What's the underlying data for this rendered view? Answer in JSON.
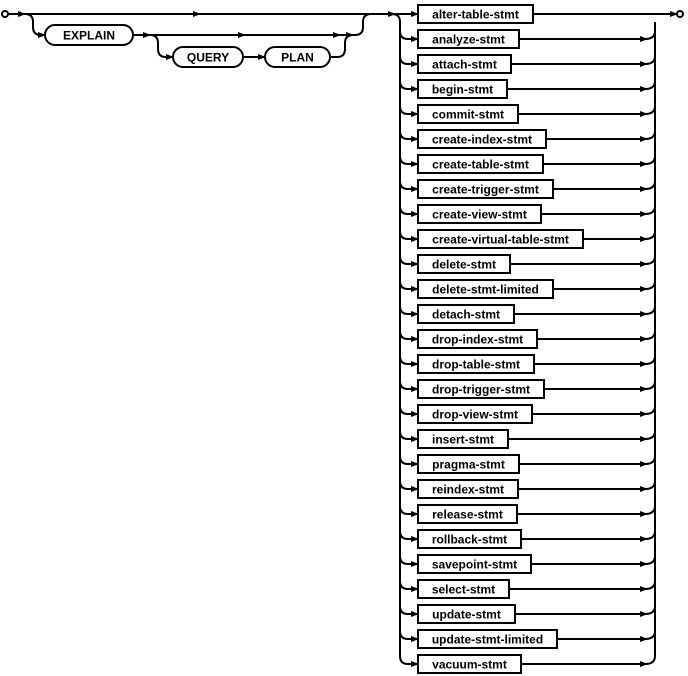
{
  "keywords": {
    "explain": "EXPLAIN",
    "query": "QUERY",
    "plan": "PLAN"
  },
  "statements": [
    "alter-table-stmt",
    "analyze-stmt",
    "attach-stmt",
    "begin-stmt",
    "commit-stmt",
    "create-index-stmt",
    "create-table-stmt",
    "create-trigger-stmt",
    "create-view-stmt",
    "create-virtual-table-stmt",
    "delete-stmt",
    "delete-stmt-limited",
    "detach-stmt",
    "drop-index-stmt",
    "drop-table-stmt",
    "drop-trigger-stmt",
    "drop-view-stmt",
    "insert-stmt",
    "pragma-stmt",
    "reindex-stmt",
    "release-stmt",
    "rollback-stmt",
    "savepoint-stmt",
    "select-stmt",
    "update-stmt",
    "update-stmt-limited",
    "vacuum-stmt"
  ]
}
